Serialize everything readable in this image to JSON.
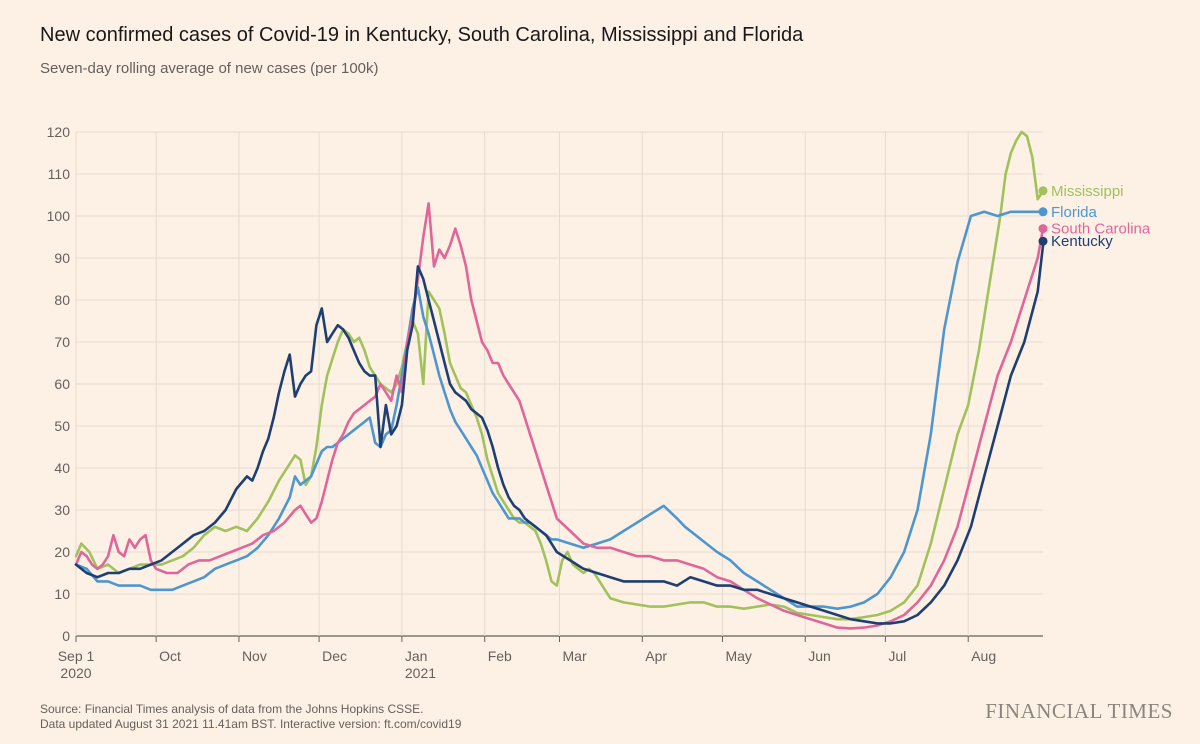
{
  "header": {
    "title": "New confirmed cases of Covid-19 in Kentucky, South Carolina, Mississippi and Florida",
    "subtitle": "Seven-day rolling average of new cases (per 100k)"
  },
  "footer": {
    "source": "Source: Financial Times analysis of data from the Johns Hopkins CSSE.",
    "updated": "Data updated August 31 2021 11.41am BST. Interactive version: ft.com/covid19",
    "brand": "FINANCIAL TIMES"
  },
  "chart_data": {
    "type": "line",
    "title": "New confirmed cases of Covid-19 in Kentucky, South Carolina, Mississippi and Florida",
    "subtitle": "Seven-day rolling average of new cases (per 100k)",
    "xlabel": "",
    "ylabel": "",
    "grid": true,
    "legend": "right end labels",
    "ylim": [
      0,
      120
    ],
    "yticks": [
      0,
      10,
      20,
      30,
      40,
      50,
      60,
      70,
      80,
      90,
      100,
      110,
      120
    ],
    "xlim": [
      0,
      362
    ],
    "xticks": [
      {
        "x": 0,
        "label": "Sep 1",
        "sub": "2020"
      },
      {
        "x": 30,
        "label": "Oct",
        "sub": ""
      },
      {
        "x": 61,
        "label": "Nov",
        "sub": ""
      },
      {
        "x": 91,
        "label": "Dec",
        "sub": ""
      },
      {
        "x": 122,
        "label": "Jan",
        "sub": "2021"
      },
      {
        "x": 153,
        "label": "Feb",
        "sub": ""
      },
      {
        "x": 181,
        "label": "Mar",
        "sub": ""
      },
      {
        "x": 212,
        "label": "Apr",
        "sub": ""
      },
      {
        "x": 242,
        "label": "May",
        "sub": ""
      },
      {
        "x": 273,
        "label": "Jun",
        "sub": ""
      },
      {
        "x": 303,
        "label": "Jul",
        "sub": ""
      },
      {
        "x": 334,
        "label": "Aug",
        "sub": ""
      }
    ],
    "series": [
      {
        "name": "Mississippi",
        "color": "#a1c15a",
        "x": [
          0,
          2,
          5,
          8,
          12,
          16,
          20,
          24,
          28,
          32,
          36,
          40,
          44,
          48,
          52,
          56,
          60,
          64,
          68,
          72,
          76,
          80,
          82,
          84,
          86,
          88,
          90,
          92,
          94,
          96,
          98,
          100,
          102,
          104,
          106,
          108,
          110,
          112,
          114,
          116,
          118,
          120,
          122,
          124,
          126,
          128,
          130,
          132,
          134,
          136,
          138,
          140,
          142,
          144,
          146,
          148,
          150,
          152,
          154,
          156,
          158,
          160,
          162,
          164,
          166,
          168,
          170,
          172,
          174,
          176,
          178,
          180,
          182,
          184,
          186,
          188,
          190,
          192,
          194,
          196,
          198,
          200,
          205,
          210,
          215,
          220,
          225,
          230,
          235,
          240,
          245,
          250,
          255,
          260,
          265,
          270,
          275,
          280,
          285,
          290,
          295,
          300,
          305,
          310,
          315,
          320,
          325,
          330,
          334,
          338,
          342,
          346,
          348,
          350,
          352,
          354,
          356,
          358,
          360,
          362
        ],
        "y": [
          19,
          22,
          20,
          16,
          17,
          15,
          16,
          17,
          17,
          17,
          18,
          19,
          21,
          24,
          26,
          25,
          26,
          25,
          28,
          32,
          37,
          41,
          43,
          42,
          36,
          38,
          45,
          55,
          62,
          66,
          70,
          73,
          72,
          70,
          71,
          68,
          64,
          62,
          60,
          59,
          58,
          60,
          64,
          70,
          75,
          72,
          60,
          82,
          80,
          78,
          72,
          65,
          62,
          59,
          58,
          55,
          52,
          48,
          42,
          38,
          34,
          32,
          30,
          28,
          27,
          27,
          26,
          25,
          22,
          18,
          13,
          12,
          18,
          20,
          17,
          16,
          15,
          16,
          15,
          13,
          11,
          9,
          8,
          7.5,
          7,
          7,
          7.5,
          8,
          8,
          7,
          7,
          6.5,
          7,
          7.5,
          7,
          5.5,
          5,
          4.5,
          4,
          4,
          4.5,
          5,
          6,
          8,
          12,
          22,
          35,
          48,
          55,
          68,
          84,
          100,
          110,
          115,
          118,
          120,
          119,
          114,
          104,
          106
        ]
      },
      {
        "name": "Florida",
        "color": "#4e96d0",
        "x": [
          0,
          4,
          8,
          12,
          16,
          20,
          24,
          28,
          32,
          36,
          40,
          44,
          48,
          52,
          56,
          60,
          64,
          68,
          72,
          76,
          80,
          82,
          84,
          86,
          88,
          90,
          92,
          94,
          96,
          98,
          100,
          102,
          104,
          106,
          108,
          110,
          112,
          114,
          116,
          118,
          120,
          122,
          124,
          126,
          128,
          130,
          132,
          134,
          136,
          138,
          140,
          142,
          144,
          146,
          148,
          150,
          152,
          154,
          156,
          158,
          160,
          162,
          164,
          166,
          168,
          170,
          172,
          174,
          176,
          178,
          180,
          185,
          190,
          195,
          200,
          205,
          210,
          215,
          220,
          225,
          228,
          232,
          236,
          240,
          245,
          250,
          255,
          260,
          265,
          270,
          275,
          280,
          285,
          290,
          295,
          300,
          305,
          310,
          315,
          320,
          325,
          330,
          335,
          340,
          345,
          350,
          355,
          362
        ],
        "y": [
          17,
          16,
          13,
          13,
          12,
          12,
          12,
          11,
          11,
          11,
          12,
          13,
          14,
          16,
          17,
          18,
          19,
          21,
          24,
          28,
          33,
          38,
          36,
          37,
          38,
          41,
          44,
          45,
          45,
          46,
          47,
          48,
          49,
          50,
          51,
          52,
          46,
          45,
          48,
          49,
          55,
          62,
          70,
          78,
          83,
          76,
          72,
          67,
          62,
          58,
          54,
          51,
          49,
          47,
          45,
          43,
          40,
          37,
          34,
          32,
          30,
          28,
          28,
          28,
          27,
          27,
          26,
          25,
          24,
          23,
          23,
          22,
          21,
          22,
          23,
          25,
          27,
          29,
          31,
          28,
          26,
          24,
          22,
          20,
          18,
          15,
          13,
          11,
          9,
          7,
          7,
          7,
          6.5,
          7,
          8,
          10,
          14,
          20,
          30,
          48,
          73,
          89,
          100,
          101,
          100,
          101,
          101,
          101
        ]
      },
      {
        "name": "South Carolina",
        "color": "#e0669a",
        "x": [
          0,
          2,
          4,
          6,
          8,
          10,
          12,
          14,
          16,
          18,
          20,
          22,
          24,
          26,
          28,
          30,
          34,
          38,
          42,
          46,
          50,
          54,
          58,
          62,
          66,
          70,
          74,
          78,
          82,
          84,
          86,
          88,
          90,
          92,
          94,
          96,
          98,
          100,
          102,
          104,
          106,
          108,
          110,
          112,
          114,
          116,
          118,
          120,
          122,
          124,
          126,
          128,
          130,
          132,
          134,
          136,
          138,
          140,
          142,
          144,
          146,
          148,
          150,
          152,
          154,
          156,
          158,
          160,
          162,
          164,
          166,
          168,
          170,
          172,
          174,
          176,
          178,
          180,
          185,
          190,
          195,
          200,
          205,
          210,
          215,
          220,
          225,
          230,
          235,
          240,
          245,
          250,
          255,
          260,
          265,
          270,
          275,
          280,
          285,
          290,
          295,
          300,
          305,
          310,
          315,
          320,
          325,
          330,
          335,
          340,
          345,
          350,
          355,
          360,
          362
        ],
        "y": [
          17,
          20,
          19,
          17,
          16,
          17,
          19,
          24,
          20,
          19,
          23,
          21,
          23,
          24,
          18,
          16,
          15,
          15,
          17,
          18,
          18,
          19,
          20,
          21,
          22,
          24,
          25,
          27,
          30,
          31,
          29,
          27,
          28,
          32,
          37,
          42,
          46,
          48,
          51,
          53,
          54,
          55,
          56,
          57,
          60,
          58,
          56,
          62,
          58,
          70,
          76,
          85,
          95,
          103,
          88,
          92,
          90,
          93,
          97,
          93,
          88,
          80,
          75,
          70,
          68,
          65,
          65,
          62,
          60,
          58,
          56,
          52,
          48,
          44,
          40,
          36,
          32,
          28,
          25,
          22,
          21,
          21,
          20,
          19,
          19,
          18,
          18,
          17,
          16,
          14,
          13,
          11,
          9,
          7.5,
          6,
          5,
          4,
          3,
          2,
          1.8,
          2,
          2.5,
          3.5,
          5,
          8,
          12,
          18,
          26,
          38,
          50,
          62,
          70,
          80,
          90,
          97
        ]
      },
      {
        "name": "Kentucky",
        "color": "#1e3f73",
        "x": [
          0,
          4,
          8,
          12,
          16,
          20,
          24,
          28,
          32,
          36,
          40,
          44,
          48,
          52,
          56,
          60,
          64,
          66,
          68,
          70,
          72,
          74,
          76,
          78,
          80,
          82,
          84,
          86,
          88,
          90,
          92,
          94,
          96,
          98,
          100,
          102,
          104,
          106,
          108,
          110,
          112,
          114,
          116,
          118,
          120,
          122,
          124,
          126,
          128,
          130,
          132,
          134,
          136,
          138,
          140,
          142,
          144,
          146,
          148,
          150,
          152,
          154,
          156,
          158,
          160,
          162,
          164,
          166,
          168,
          170,
          172,
          174,
          176,
          178,
          180,
          185,
          190,
          195,
          200,
          205,
          210,
          215,
          220,
          225,
          230,
          235,
          240,
          245,
          250,
          255,
          260,
          265,
          270,
          275,
          280,
          285,
          290,
          295,
          300,
          305,
          310,
          315,
          320,
          325,
          330,
          335,
          340,
          345,
          350,
          355,
          360,
          362
        ],
        "y": [
          17,
          15,
          14,
          15,
          15,
          16,
          16,
          17,
          18,
          20,
          22,
          24,
          25,
          27,
          30,
          35,
          38,
          37,
          40,
          44,
          47,
          52,
          58,
          63,
          67,
          57,
          60,
          62,
          63,
          74,
          78,
          70,
          72,
          74,
          73,
          71,
          68,
          65,
          63,
          62,
          62,
          45,
          55,
          48,
          50,
          55,
          68,
          74,
          88,
          85,
          80,
          75,
          70,
          65,
          60,
          58,
          57,
          56,
          54,
          53,
          52,
          49,
          45,
          40,
          36,
          33,
          31,
          30,
          28,
          27,
          26,
          25,
          24,
          22,
          20,
          18,
          16,
          15,
          14,
          13,
          13,
          13,
          13,
          12,
          14,
          13,
          12,
          12,
          11,
          11,
          10,
          9,
          8,
          7,
          6,
          5,
          4,
          3.5,
          3,
          3,
          3.5,
          5,
          8,
          12,
          18,
          26,
          38,
          50,
          62,
          70,
          82,
          93
        ]
      }
    ],
    "labels": [
      {
        "series": "Mississippi",
        "text": "Mississippi",
        "y_value": 106
      },
      {
        "series": "Florida",
        "text": "Florida",
        "y_value": 101
      },
      {
        "series": "South Carolina",
        "text": "South Carolina",
        "y_value": 97
      },
      {
        "series": "Kentucky",
        "text": "Kentucky",
        "y_value": 94
      }
    ]
  }
}
